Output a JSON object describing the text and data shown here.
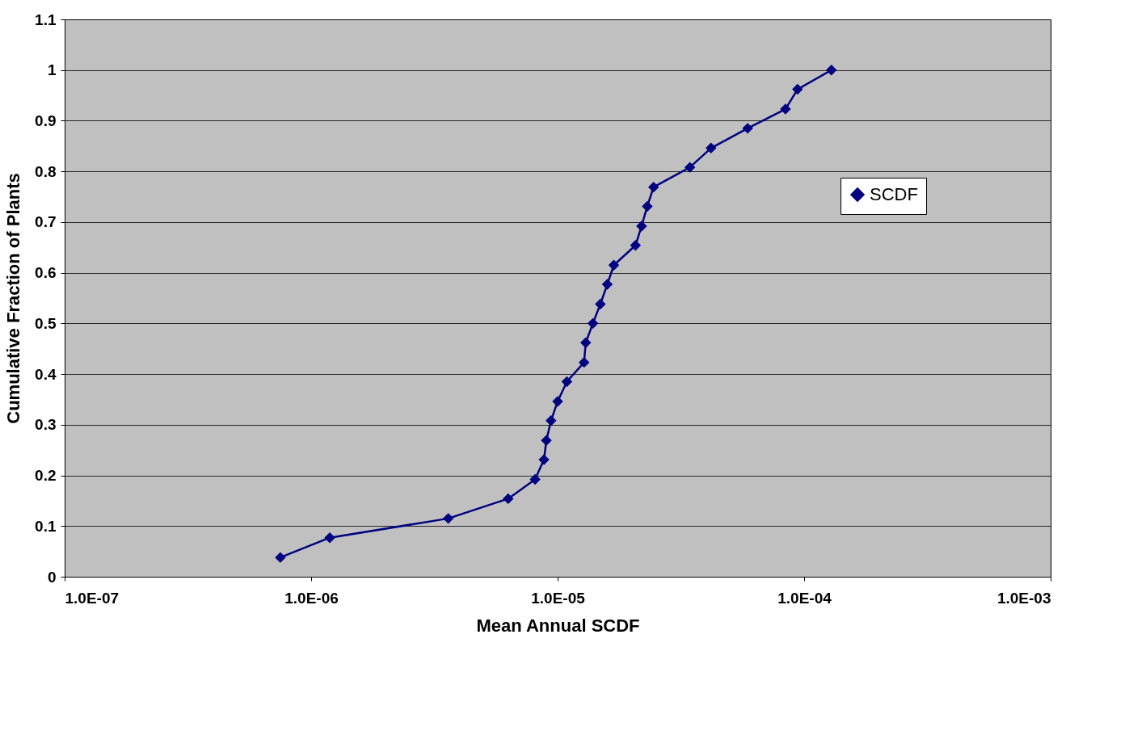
{
  "chart_data": {
    "type": "line",
    "xlabel": "Mean Annual SCDF",
    "ylabel": "Cumulative Fraction of Plants",
    "log": "x",
    "xlim": [
      1e-07,
      0.001
    ],
    "xticks": [
      {
        "value": 1e-07,
        "label": "1.0E-07"
      },
      {
        "value": 1e-06,
        "label": "1.0E-06"
      },
      {
        "value": 1e-05,
        "label": "1.0E-05"
      },
      {
        "value": 0.0001,
        "label": "1.0E-04"
      },
      {
        "value": 0.001,
        "label": "1.0E-03"
      }
    ],
    "ylim": [
      0,
      1.1
    ],
    "yticks": [
      0,
      0.1,
      0.2,
      0.3,
      0.4,
      0.5,
      0.6,
      0.7,
      0.8,
      0.9,
      1,
      1.1
    ],
    "grid": "y",
    "legend": "right",
    "marker": "diamond",
    "line_style": "solid",
    "series": [
      {
        "name": "SCDF",
        "color": "#000080",
        "x": [
          7.5e-07,
          1.19e-06,
          3.6e-06,
          6.3e-06,
          8.1e-06,
          8.8e-06,
          9e-06,
          9.4e-06,
          1e-05,
          1.09e-05,
          1.28e-05,
          1.3e-05,
          1.39e-05,
          1.49e-05,
          1.59e-05,
          1.69e-05,
          2.07e-05,
          2.19e-05,
          2.31e-05,
          2.45e-05,
          3.44e-05,
          4.19e-05,
          5.9e-05,
          8.4e-05,
          9.4e-05,
          0.000129
        ],
        "values": [
          0.038,
          0.077,
          0.115,
          0.154,
          0.192,
          0.231,
          0.269,
          0.308,
          0.346,
          0.385,
          0.423,
          0.462,
          0.5,
          0.538,
          0.577,
          0.615,
          0.654,
          0.692,
          0.731,
          0.769,
          0.808,
          0.846,
          0.885,
          0.923,
          0.962,
          1.0
        ]
      }
    ]
  }
}
